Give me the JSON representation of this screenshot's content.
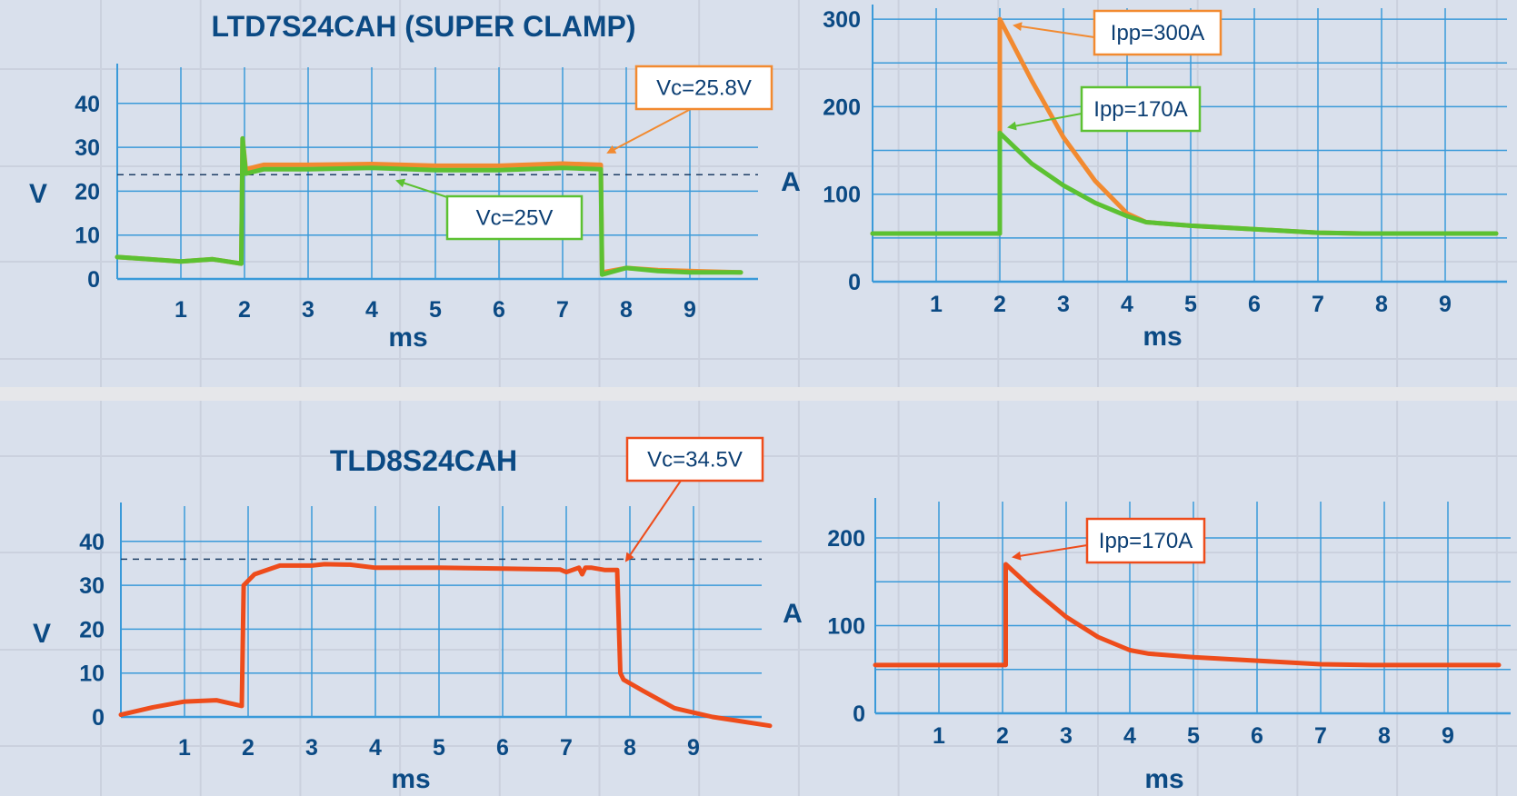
{
  "colors": {
    "background": "#d9e0ec",
    "grid": "#3a9ad9",
    "text": "#0b4a84",
    "super_clamp": "#f28a30",
    "standard_tvs_green": "#5cc132",
    "tld": "#ee4c1b"
  },
  "chart_data": [
    {
      "type": "line",
      "title": "LTD7S24CAH (SUPER CLAMP)",
      "xlabel": "ms",
      "ylabel": "V",
      "xticks": [
        "1",
        "2",
        "3",
        "4",
        "5",
        "6",
        "7",
        "8",
        "9"
      ],
      "yticks": [
        "0",
        "10",
        "20",
        "30",
        "40"
      ],
      "xlim": [
        0,
        10
      ],
      "ylim": [
        0,
        45
      ],
      "grid": true,
      "reference_line": 25,
      "series": [
        {
          "color": "#f28a30",
          "x": [
            0,
            0.5,
            1,
            1.5,
            1.95,
            1.97,
            2.02,
            2.3,
            3,
            4,
            5,
            6,
            7,
            7.6,
            7.62,
            8,
            8.5,
            9,
            9.8
          ],
          "y": [
            5,
            4.5,
            4,
            4.5,
            3.5,
            32,
            25,
            26,
            26,
            26.2,
            25.8,
            25.8,
            26.3,
            26,
            1.5,
            2.5,
            2,
            1.8,
            1.5
          ]
        },
        {
          "color": "#5cc132",
          "x": [
            0,
            0.5,
            1,
            1.5,
            1.95,
            1.97,
            2.02,
            2.3,
            3,
            4,
            5,
            6,
            7,
            7.6,
            7.62,
            8,
            8.5,
            9,
            9.8
          ],
          "y": [
            5,
            4.5,
            4,
            4.5,
            3.5,
            32,
            24,
            25,
            25,
            25.3,
            24.8,
            24.8,
            25.3,
            25,
            1,
            2.5,
            1.8,
            1.5,
            1.5
          ]
        }
      ],
      "annotations": [
        {
          "text": "Vc=25.8V",
          "color": "#f28a30"
        },
        {
          "text": "Vc=25V",
          "color": "#5cc132"
        }
      ]
    },
    {
      "type": "line",
      "title": "",
      "xlabel": "ms",
      "ylabel": "A",
      "xticks": [
        "1",
        "2",
        "3",
        "4",
        "5",
        "6",
        "7",
        "8",
        "9"
      ],
      "yticks": [
        "0",
        "100",
        "200",
        "300"
      ],
      "xlim": [
        0,
        10
      ],
      "ylim": [
        0,
        310
      ],
      "grid": true,
      "series": [
        {
          "color": "#f28a30",
          "x": [
            0,
            2,
            2,
            2.5,
            3,
            3.5,
            4,
            4.3,
            5,
            6,
            7,
            7.7,
            9.8
          ],
          "y": [
            55,
            55,
            300,
            230,
            165,
            115,
            78,
            68,
            64,
            60,
            56,
            55,
            55
          ]
        },
        {
          "color": "#5cc132",
          "x": [
            0,
            2,
            2,
            2.5,
            3,
            3.5,
            4,
            4.3,
            5,
            6,
            7,
            7.7,
            9.8
          ],
          "y": [
            55,
            55,
            170,
            135,
            110,
            90,
            75,
            68,
            64,
            60,
            56,
            55,
            55
          ]
        }
      ],
      "annotations": [
        {
          "text": "Ipp=300A",
          "color": "#f28a30"
        },
        {
          "text": "Ipp=170A",
          "color": "#5cc132"
        }
      ]
    },
    {
      "type": "line",
      "title": "TLD8S24CAH",
      "xlabel": "ms",
      "ylabel": "V",
      "xticks": [
        "1",
        "2",
        "3",
        "4",
        "5",
        "6",
        "7",
        "8",
        "9"
      ],
      "yticks": [
        "0",
        "10",
        "20",
        "30",
        "40"
      ],
      "xlim": [
        0,
        10
      ],
      "ylim": [
        0,
        45
      ],
      "grid": true,
      "reference_line": 34.5,
      "series": [
        {
          "color": "#ee4c1b",
          "x": [
            0,
            0.5,
            1,
            1.5,
            1.9,
            1.93,
            2.1,
            2.5,
            3,
            3.2,
            3.6,
            4,
            5,
            6,
            6.9,
            7,
            7.2,
            7.25,
            7.3,
            7.4,
            7.6,
            7.8,
            7.85,
            7.9,
            8.2,
            8.7,
            9.3,
            10.2
          ],
          "y": [
            0.5,
            2.2,
            3.5,
            3.8,
            2.5,
            30,
            32.5,
            34.5,
            34.5,
            34.8,
            34.7,
            34,
            34,
            33.8,
            33.6,
            33,
            34,
            32.5,
            34,
            34,
            33.5,
            33.5,
            10,
            8.5,
            6,
            2,
            0,
            -2
          ]
        }
      ],
      "annotations": [
        {
          "text": "Vc=34.5V",
          "color": "#ee4c1b"
        }
      ]
    },
    {
      "type": "line",
      "title": "",
      "xlabel": "ms",
      "ylabel": "A",
      "xticks": [
        "1",
        "2",
        "3",
        "4",
        "5",
        "6",
        "7",
        "8",
        "9"
      ],
      "yticks": [
        "0",
        "100",
        "200"
      ],
      "xlim": [
        0,
        10
      ],
      "ylim": [
        0,
        230
      ],
      "grid": true,
      "series": [
        {
          "color": "#ee4c1b",
          "x": [
            0,
            2.05,
            2.05,
            2.5,
            3,
            3.5,
            4,
            4.3,
            5,
            6,
            7,
            7.8,
            9.8
          ],
          "y": [
            55,
            55,
            170,
            140,
            110,
            87,
            72,
            68,
            64,
            60,
            56,
            55,
            55
          ]
        }
      ],
      "annotations": [
        {
          "text": "Ipp=170A",
          "color": "#ee4c1b"
        }
      ]
    }
  ]
}
